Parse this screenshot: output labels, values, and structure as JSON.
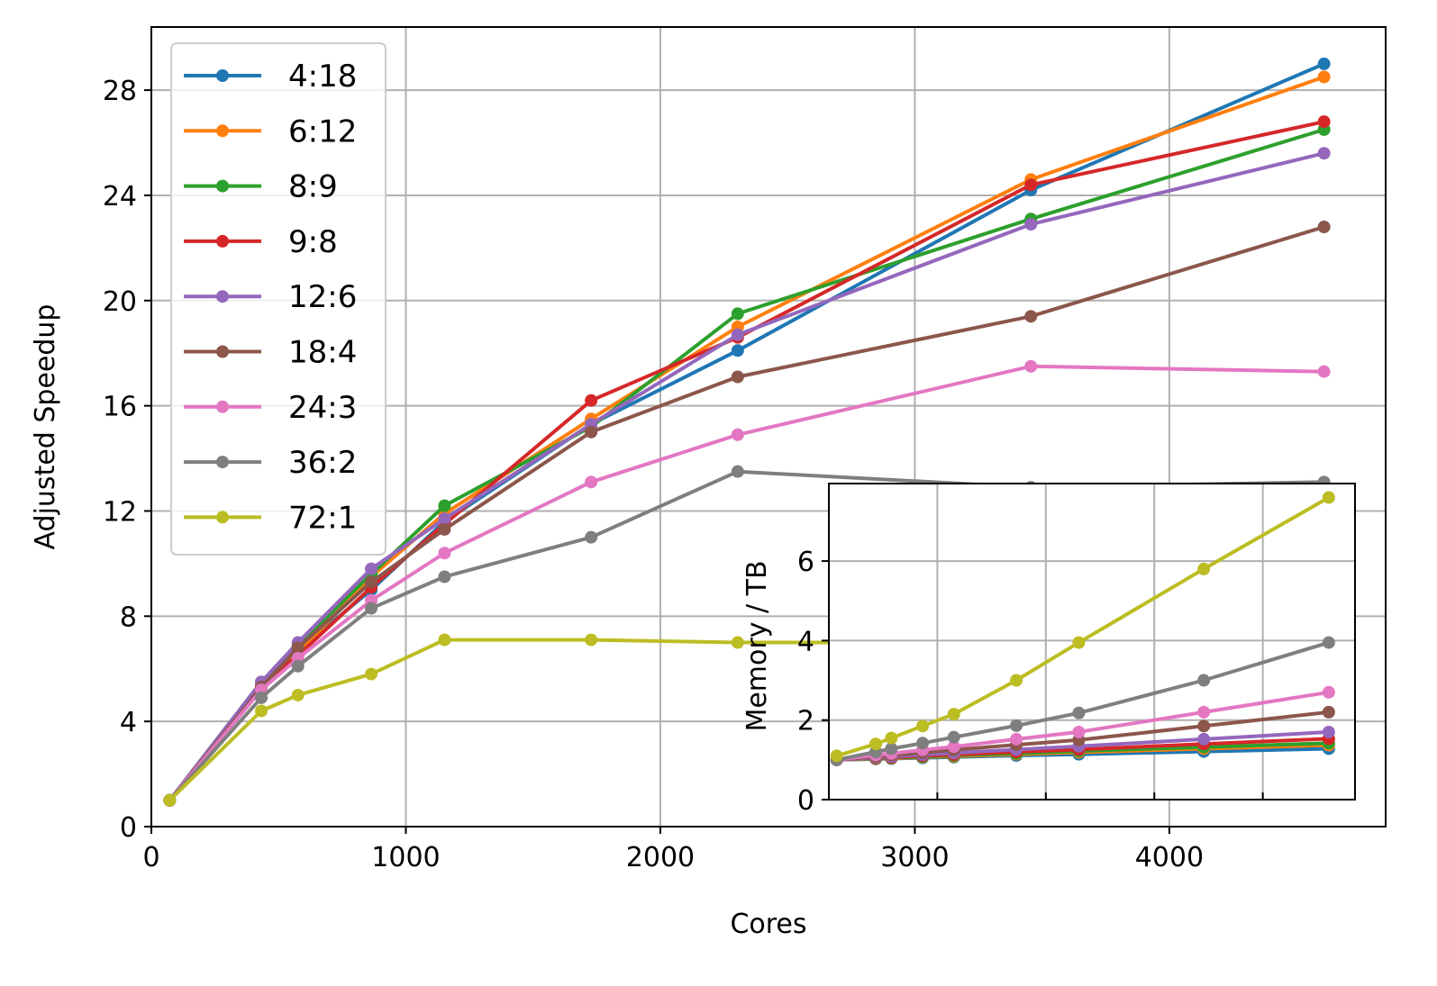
{
  "chart_data": [
    {
      "type": "line",
      "title": "",
      "xlabel": "Cores",
      "ylabel": "Adjusted Speedup",
      "xlim": [
        0,
        4850
      ],
      "ylim": [
        0,
        30.4
      ],
      "xticks": [
        0,
        1000,
        2000,
        3000,
        4000
      ],
      "xtick_labels": [
        "0",
        "1000",
        "2000",
        "3000",
        "4000"
      ],
      "yticks": [
        0,
        4,
        8,
        12,
        16,
        20,
        24,
        28
      ],
      "ytick_labels": [
        "0",
        "4",
        "8",
        "12",
        "16",
        "20",
        "24",
        "28"
      ],
      "grid": true,
      "legend_position": "upper-left",
      "x": [
        72,
        432,
        576,
        864,
        1152,
        1728,
        2304,
        3456,
        4608
      ],
      "series": [
        {
          "name": "4:18",
          "color": "#1f77b4",
          "values": [
            1.0,
            5.3,
            6.7,
            9.0,
            11.6,
            15.3,
            18.1,
            24.2,
            29.0
          ]
        },
        {
          "name": "6:12",
          "color": "#ff7f0e",
          "values": [
            1.0,
            5.3,
            6.6,
            9.5,
            11.9,
            15.5,
            19.0,
            24.6,
            28.5
          ]
        },
        {
          "name": "8:9",
          "color": "#2ca02c",
          "values": [
            1.0,
            5.5,
            6.9,
            9.6,
            12.2,
            15.2,
            19.5,
            23.1,
            26.5
          ]
        },
        {
          "name": "9:8",
          "color": "#d62728",
          "values": [
            1.0,
            5.4,
            6.5,
            9.1,
            11.5,
            16.2,
            18.6,
            24.4,
            26.8
          ]
        },
        {
          "name": "12:6",
          "color": "#9467bd",
          "values": [
            1.0,
            5.5,
            7.0,
            9.8,
            11.7,
            15.3,
            18.7,
            22.9,
            25.6
          ]
        },
        {
          "name": "18:4",
          "color": "#8c564b",
          "values": [
            1.0,
            5.3,
            6.8,
            9.3,
            11.3,
            15.0,
            17.1,
            19.4,
            22.8
          ]
        },
        {
          "name": "24:3",
          "color": "#e377c2",
          "values": [
            1.0,
            5.2,
            6.4,
            8.6,
            10.4,
            13.1,
            14.9,
            17.5,
            17.3
          ]
        },
        {
          "name": "36:2",
          "color": "#7f7f7f",
          "values": [
            1.0,
            4.9,
            6.1,
            8.3,
            9.5,
            11.0,
            13.5,
            12.9,
            13.1
          ]
        },
        {
          "name": "72:1",
          "color": "#bcbd22",
          "values": [
            1.0,
            4.4,
            5.0,
            5.8,
            7.1,
            7.1,
            7.0,
            7.0,
            7.0
          ]
        }
      ]
    },
    {
      "type": "line",
      "title": "",
      "xlabel": "",
      "ylabel": "Memory / TB",
      "xlim": [
        0,
        4850
      ],
      "ylim": [
        0,
        7.95
      ],
      "xticks": [
        1000,
        2000,
        3000,
        4000
      ],
      "yticks": [
        0,
        2,
        4,
        6
      ],
      "ytick_labels": [
        "0",
        "2",
        "4",
        "6"
      ],
      "grid": true,
      "x": [
        72,
        432,
        576,
        864,
        1152,
        1728,
        2304,
        3456,
        4608
      ],
      "series": [
        {
          "name": "4:18",
          "color": "#1f77b4",
          "values": [
            1.0,
            1.02,
            1.03,
            1.05,
            1.07,
            1.11,
            1.14,
            1.21,
            1.28
          ]
        },
        {
          "name": "6:12",
          "color": "#ff7f0e",
          "values": [
            1.0,
            1.03,
            1.04,
            1.07,
            1.09,
            1.14,
            1.19,
            1.28,
            1.37
          ]
        },
        {
          "name": "8:9",
          "color": "#2ca02c",
          "values": [
            1.0,
            1.04,
            1.05,
            1.08,
            1.11,
            1.16,
            1.22,
            1.32,
            1.42
          ]
        },
        {
          "name": "9:8",
          "color": "#d62728",
          "values": [
            1.0,
            1.05,
            1.06,
            1.1,
            1.13,
            1.2,
            1.26,
            1.4,
            1.53
          ]
        },
        {
          "name": "12:6",
          "color": "#9467bd",
          "values": [
            1.0,
            1.06,
            1.08,
            1.13,
            1.17,
            1.26,
            1.34,
            1.52,
            1.7
          ]
        },
        {
          "name": "18:4",
          "color": "#8c564b",
          "values": [
            1.0,
            1.08,
            1.12,
            1.18,
            1.25,
            1.38,
            1.5,
            1.85,
            2.2
          ]
        },
        {
          "name": "24:3",
          "color": "#e377c2",
          "values": [
            1.0,
            1.12,
            1.16,
            1.25,
            1.33,
            1.52,
            1.7,
            2.2,
            2.7
          ]
        },
        {
          "name": "36:2",
          "color": "#7f7f7f",
          "values": [
            1.0,
            1.2,
            1.28,
            1.42,
            1.57,
            1.86,
            2.18,
            3.0,
            3.95
          ]
        },
        {
          "name": "72:1",
          "color": "#bcbd22",
          "values": [
            1.1,
            1.4,
            1.55,
            1.85,
            2.15,
            3.0,
            3.95,
            5.8,
            7.6
          ]
        }
      ]
    }
  ]
}
